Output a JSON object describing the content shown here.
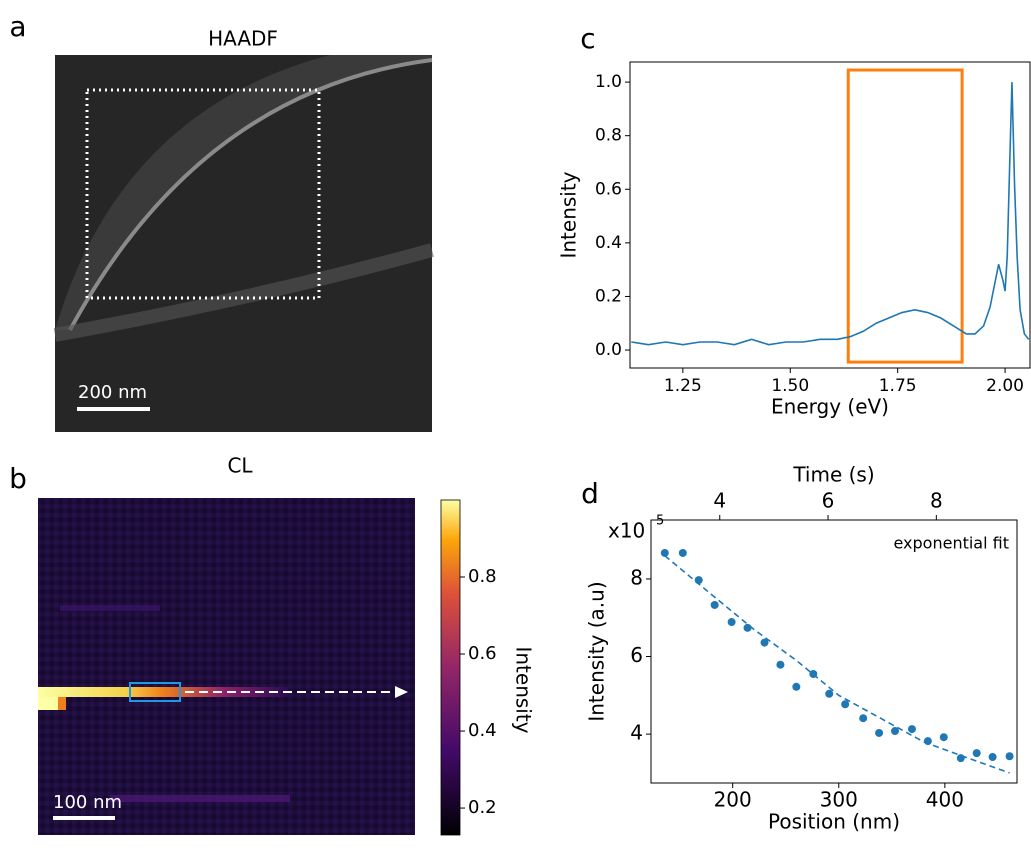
{
  "chart_data": [
    {
      "type": "image",
      "panel": "a",
      "title": "HAADF",
      "scale_bar": "200 nm"
    },
    {
      "type": "heatmap",
      "panel": "b",
      "title": "CL",
      "scale_bar": "100 nm",
      "colorbar": {
        "label": "Intensity",
        "lim": [
          0.13,
          1.0
        ],
        "ticks": [
          0.2,
          0.4,
          0.6,
          0.8
        ]
      }
    },
    {
      "type": "line",
      "panel": "c",
      "xlabel": "Energy (eV)",
      "ylabel": "Intensity",
      "x": [
        1.13,
        1.17,
        1.21,
        1.25,
        1.29,
        1.33,
        1.37,
        1.41,
        1.45,
        1.49,
        1.53,
        1.57,
        1.61,
        1.64,
        1.67,
        1.7,
        1.73,
        1.76,
        1.79,
        1.82,
        1.85,
        1.88,
        1.91,
        1.93,
        1.95,
        1.965,
        1.975,
        1.985,
        1.995,
        2.0,
        2.005,
        2.01,
        2.016,
        2.022,
        2.028,
        2.035,
        2.045,
        2.055
      ],
      "series": [
        {
          "color": "#1f77b4",
          "values": [
            0.03,
            0.02,
            0.03,
            0.02,
            0.03,
            0.03,
            0.02,
            0.04,
            0.02,
            0.03,
            0.03,
            0.04,
            0.04,
            0.05,
            0.07,
            0.1,
            0.12,
            0.14,
            0.15,
            0.14,
            0.12,
            0.09,
            0.06,
            0.06,
            0.09,
            0.16,
            0.24,
            0.32,
            0.26,
            0.22,
            0.35,
            0.65,
            1.0,
            0.62,
            0.35,
            0.15,
            0.06,
            0.04
          ]
        }
      ],
      "highlight": {
        "x": [
          1.635,
          1.9
        ],
        "y": [
          -0.045,
          1.045
        ],
        "color": "#ff7f0e"
      },
      "xlim": [
        1.127,
        2.058
      ],
      "ylim": [
        -0.067,
        1.075
      ],
      "xticks": [
        1.25,
        {
          "value": 1.5,
          "label": "1.50"
        },
        1.75,
        {
          "value": 2.0,
          "label": "2.00"
        }
      ],
      "yticks": [
        {
          "value": 0,
          "label": "0.0"
        },
        0.2,
        0.4,
        0.6,
        0.8,
        {
          "value": 1.0,
          "label": "1.0"
        }
      ]
    },
    {
      "type": "scatter",
      "panel": "d",
      "xlabel": "Position (nm)",
      "ylabel": "Intensity (a.u)",
      "x2label": "Time (s)",
      "y_multiplier": {
        "base": "x10",
        "exponent": "5"
      },
      "x": [
        136,
        153,
        168,
        183,
        199,
        214,
        230,
        245,
        260,
        276,
        291,
        306,
        323,
        338,
        353,
        369,
        384,
        399,
        415,
        430,
        445,
        461
      ],
      "series": [
        {
          "color": "#1f77b4",
          "values": [
            8.67,
            8.67,
            7.97,
            7.33,
            6.89,
            6.74,
            6.36,
            5.79,
            5.22,
            5.55,
            5.04,
            4.77,
            4.41,
            4.03,
            4.08,
            4.13,
            3.82,
            3.92,
            3.38,
            3.51,
            3.41,
            3.43
          ]
        },
        {
          "name": "exponential fit",
          "color": "#1f77b4",
          "style": "dashed",
          "x": [
            136,
            180,
            220,
            260,
            300,
            340,
            380,
            420,
            461
          ],
          "values": [
            8.6,
            7.6,
            6.7,
            5.9,
            5.0,
            4.4,
            3.8,
            3.4,
            3.0
          ]
        }
      ],
      "xlim": [
        123,
        468
      ],
      "ylim": [
        2.74,
        9.52
      ],
      "x2lim": [
        2.73,
        9.49
      ],
      "xticks": [
        200,
        300,
        400
      ],
      "yticks": [
        4,
        6,
        8
      ],
      "x2ticks": [
        4,
        6,
        8
      ]
    }
  ]
}
